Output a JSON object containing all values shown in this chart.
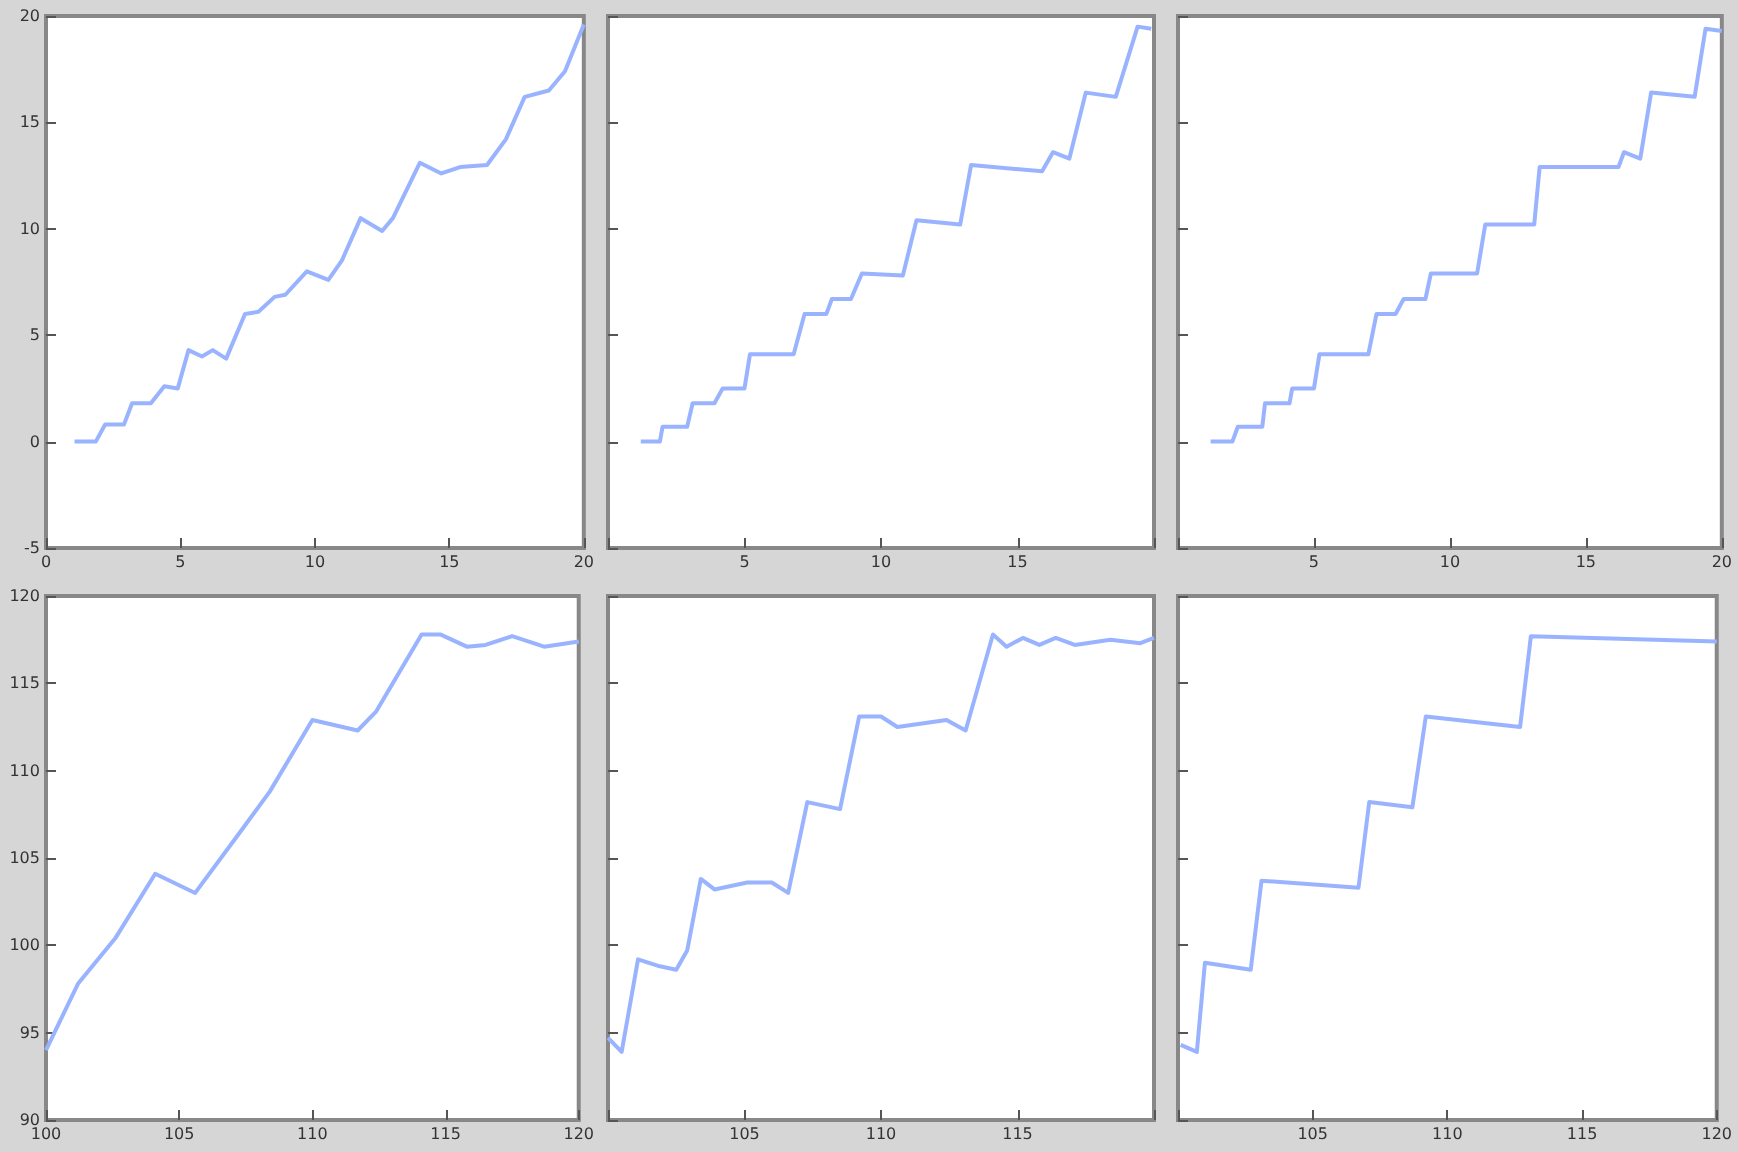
{
  "chart_data": [
    {
      "type": "line",
      "xlim": [
        0,
        20
      ],
      "ylim": [
        -5,
        20
      ],
      "xticks": [
        0,
        5,
        10,
        15,
        20
      ],
      "yticks": [
        -5,
        0,
        5,
        10,
        15,
        20
      ],
      "marker": "none",
      "series": [
        {
          "color": "#99b3ff",
          "x": [
            1.06,
            1.85,
            2.2,
            2.9,
            3.2,
            3.9,
            4.4,
            4.9,
            5.3,
            5.8,
            6.2,
            6.7,
            7.4,
            7.9,
            8.5,
            8.9,
            9.7,
            10.5,
            11.0,
            11.7,
            12.5,
            12.9,
            13.9,
            14.7,
            15.4,
            16.4,
            17.1,
            17.8,
            18.7,
            19.3,
            20
          ],
          "values": [
            0,
            0,
            0.8,
            0.8,
            1.8,
            1.8,
            2.6,
            2.5,
            4.3,
            4.0,
            4.3,
            3.9,
            6.0,
            6.1,
            6.8,
            6.9,
            8.0,
            7.6,
            8.5,
            10.5,
            9.9,
            10.5,
            13.1,
            12.6,
            12.9,
            13.0,
            14.2,
            16.2,
            16.5,
            17.4,
            19.6
          ]
        }
      ]
    },
    {
      "type": "line",
      "xlim": [
        0,
        20
      ],
      "ylim": [
        -5,
        20
      ],
      "xticks": [
        {
          "value": 0,
          "label": null
        },
        5,
        10,
        15,
        {
          "value": 20,
          "label": null
        }
      ],
      "yticks": [
        -5,
        0,
        5,
        10,
        15,
        20
      ],
      "tick_labels": "x",
      "marker": "none",
      "series": [
        {
          "color": "#99b3ff",
          "x": [
            1.2,
            1.9,
            2.0,
            2.9,
            3.1,
            3.9,
            4.2,
            5.0,
            5.2,
            6.8,
            7.2,
            8.0,
            8.2,
            8.9,
            9.3,
            10.8,
            11.3,
            12.9,
            13.3,
            15.9,
            16.3,
            16.9,
            17.5,
            18.6,
            19.4,
            19.9
          ],
          "values": [
            0,
            0,
            0.7,
            0.7,
            1.8,
            1.8,
            2.5,
            2.5,
            4.1,
            4.1,
            6.0,
            6.0,
            6.7,
            6.7,
            7.9,
            7.8,
            10.4,
            10.2,
            13.0,
            12.7,
            13.6,
            13.3,
            16.4,
            16.2,
            19.5,
            19.4
          ]
        }
      ]
    },
    {
      "type": "line",
      "xlim": [
        0,
        20
      ],
      "ylim": [
        -5,
        20
      ],
      "xticks": [
        {
          "value": 0,
          "label": null
        },
        5,
        10,
        15,
        20
      ],
      "yticks": [
        -5,
        0,
        5,
        10,
        15,
        20
      ],
      "tick_labels": "x",
      "marker": "none",
      "series": [
        {
          "color": "#99b3ff",
          "x": [
            1.2,
            2.0,
            2.2,
            3.1,
            3.2,
            4.1,
            4.2,
            5.0,
            5.2,
            7.0,
            7.3,
            8.0,
            8.3,
            9.1,
            9.3,
            11.0,
            11.3,
            13.1,
            13.3,
            16.2,
            16.4,
            17.0,
            17.4,
            19.0,
            19.4,
            20
          ],
          "values": [
            0,
            0,
            0.7,
            0.7,
            1.8,
            1.8,
            2.5,
            2.5,
            4.1,
            4.1,
            6.0,
            6.0,
            6.7,
            6.7,
            7.9,
            7.9,
            10.2,
            10.2,
            12.9,
            12.9,
            13.6,
            13.3,
            16.4,
            16.2,
            19.4,
            19.3
          ]
        }
      ]
    },
    {
      "type": "line",
      "xlim": [
        100,
        120
      ],
      "ylim": [
        90,
        120
      ],
      "xticks": [
        100,
        105,
        110,
        115,
        120
      ],
      "yticks": [
        90,
        95,
        100,
        105,
        110,
        115,
        120
      ],
      "marker": "none",
      "series": [
        {
          "color": "#99b3ff",
          "x": [
            100,
            101.2,
            102.6,
            104.1,
            105.6,
            107.2,
            108.4,
            110.0,
            111.7,
            112.4,
            114.1,
            114.8,
            115.8,
            116.5,
            117.5,
            118.7,
            120
          ],
          "values": [
            94.0,
            97.8,
            100.4,
            104.1,
            103.0,
            106.3,
            108.8,
            112.9,
            112.3,
            113.4,
            117.8,
            117.8,
            117.1,
            117.2,
            117.7,
            117.1,
            117.4
          ]
        }
      ]
    },
    {
      "type": "line",
      "xlim": [
        100,
        120
      ],
      "ylim": [
        90,
        120
      ],
      "xticks": [
        {
          "value": 100,
          "label": null
        },
        105,
        110,
        115,
        {
          "value": 120,
          "label": null
        }
      ],
      "yticks": [
        90,
        95,
        100,
        105,
        110,
        115,
        120
      ],
      "tick_labels": "x",
      "marker": "none",
      "series": [
        {
          "color": "#99b3ff",
          "x": [
            100,
            100.5,
            101.1,
            101.9,
            102.5,
            102.9,
            103.4,
            103.9,
            105.1,
            106.0,
            106.6,
            107.3,
            108.5,
            109.2,
            110.0,
            110.6,
            112.4,
            113.1,
            114.1,
            114.6,
            115.2,
            115.8,
            116.4,
            117.1,
            118.4,
            119.5,
            120
          ],
          "values": [
            94.7,
            93.9,
            99.2,
            98.8,
            98.6,
            99.7,
            103.8,
            103.2,
            103.6,
            103.6,
            103.0,
            108.2,
            107.8,
            113.1,
            113.1,
            112.5,
            112.9,
            112.3,
            117.8,
            117.1,
            117.6,
            117.2,
            117.6,
            117.2,
            117.5,
            117.3,
            117.6
          ]
        }
      ]
    },
    {
      "type": "line",
      "xlim": [
        100,
        120
      ],
      "ylim": [
        90,
        120
      ],
      "xticks": [
        {
          "value": 100,
          "label": null
        },
        105,
        110,
        115,
        120
      ],
      "yticks": [
        90,
        95,
        100,
        105,
        110,
        115,
        120
      ],
      "tick_labels": "x",
      "marker": "none",
      "series": [
        {
          "color": "#99b3ff",
          "x": [
            100.1,
            100.7,
            101.0,
            102.7,
            103.1,
            106.7,
            107.1,
            108.7,
            109.2,
            112.7,
            113.1,
            120
          ],
          "values": [
            94.3,
            93.9,
            99.0,
            98.6,
            103.7,
            103.3,
            108.2,
            107.9,
            113.1,
            112.5,
            117.7,
            117.4
          ]
        }
      ]
    }
  ]
}
